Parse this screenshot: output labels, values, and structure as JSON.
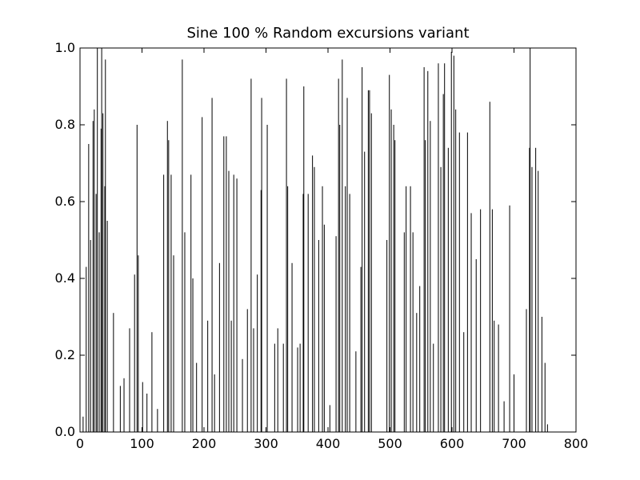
{
  "chart_data": {
    "type": "bar",
    "title": "Sine 100 % Random excursions variant",
    "color": "#000000",
    "bar_width": 0.8,
    "x": [
      5,
      10,
      14,
      17,
      21,
      23,
      26,
      28,
      31,
      34,
      35,
      37,
      40,
      41,
      44,
      54,
      65,
      71,
      80,
      88,
      92,
      94,
      101,
      108,
      116,
      125,
      135,
      141,
      143,
      147,
      151,
      165,
      169,
      179,
      182,
      188,
      197,
      206,
      213,
      217,
      225,
      232,
      236,
      240,
      244,
      248,
      253,
      262,
      270,
      276,
      280,
      286,
      292,
      293,
      302,
      314,
      319,
      328,
      333,
      335,
      342,
      351,
      355,
      360,
      361,
      368,
      375,
      378,
      385,
      391,
      394,
      403,
      413,
      417,
      419,
      423,
      428,
      431,
      435,
      445,
      453,
      455,
      459,
      465,
      467,
      470,
      495,
      499,
      502,
      506,
      508,
      523,
      526,
      533,
      537,
      543,
      548,
      555,
      557,
      561,
      565,
      570,
      578,
      582,
      586,
      588,
      594,
      599,
      603,
      606,
      612,
      619,
      625,
      631,
      639,
      646,
      661,
      665,
      668,
      675,
      684,
      693,
      700,
      720,
      725,
      726,
      729,
      735,
      739,
      745,
      750,
      754
    ],
    "values": [
      0.04,
      0.43,
      0.75,
      0.5,
      0.81,
      0.84,
      0.62,
      1.0,
      0.52,
      0.79,
      1.0,
      0.83,
      0.64,
      0.97,
      0.55,
      0.31,
      0.12,
      0.14,
      0.27,
      0.41,
      0.8,
      0.46,
      0.13,
      0.1,
      0.26,
      0.06,
      0.67,
      0.81,
      0.76,
      0.67,
      0.46,
      0.97,
      0.52,
      0.67,
      0.4,
      0.18,
      0.82,
      0.29,
      0.87,
      0.15,
      0.44,
      0.77,
      0.77,
      0.68,
      0.29,
      0.67,
      0.66,
      0.19,
      0.32,
      0.92,
      0.27,
      0.41,
      0.63,
      0.87,
      0.8,
      0.23,
      0.27,
      0.23,
      0.92,
      0.64,
      0.44,
      0.22,
      0.23,
      0.62,
      0.9,
      0.62,
      0.72,
      0.69,
      0.5,
      0.64,
      0.54,
      0.07,
      0.51,
      0.92,
      0.8,
      0.97,
      0.64,
      0.87,
      0.62,
      0.21,
      0.43,
      0.95,
      0.73,
      0.89,
      0.89,
      0.83,
      0.5,
      0.93,
      0.84,
      0.8,
      0.76,
      0.52,
      0.64,
      0.64,
      0.52,
      0.31,
      0.38,
      0.95,
      0.76,
      0.94,
      0.81,
      0.23,
      0.96,
      0.69,
      0.88,
      0.96,
      0.74,
      0.99,
      0.98,
      0.84,
      0.78,
      0.26,
      0.78,
      0.57,
      0.45,
      0.58,
      0.86,
      0.58,
      0.29,
      0.28,
      0.08,
      0.59,
      0.15,
      0.32,
      0.74,
      1.0,
      0.69,
      0.74,
      0.68,
      0.3,
      0.18,
      0.02
    ],
    "xlim": [
      0,
      800
    ],
    "xticks": [
      0,
      100,
      200,
      300,
      400,
      500,
      600,
      700,
      800
    ],
    "ylim": [
      0,
      1
    ],
    "yticks": [
      {
        "value": 0,
        "label": "0.0"
      },
      {
        "value": 0.2,
        "label": "0.2"
      },
      {
        "value": 0.4,
        "label": "0.4"
      },
      {
        "value": 0.6,
        "label": "0.6"
      },
      {
        "value": 0.8,
        "label": "0.8"
      },
      {
        "value": 1,
        "label": "1.0"
      }
    ]
  }
}
